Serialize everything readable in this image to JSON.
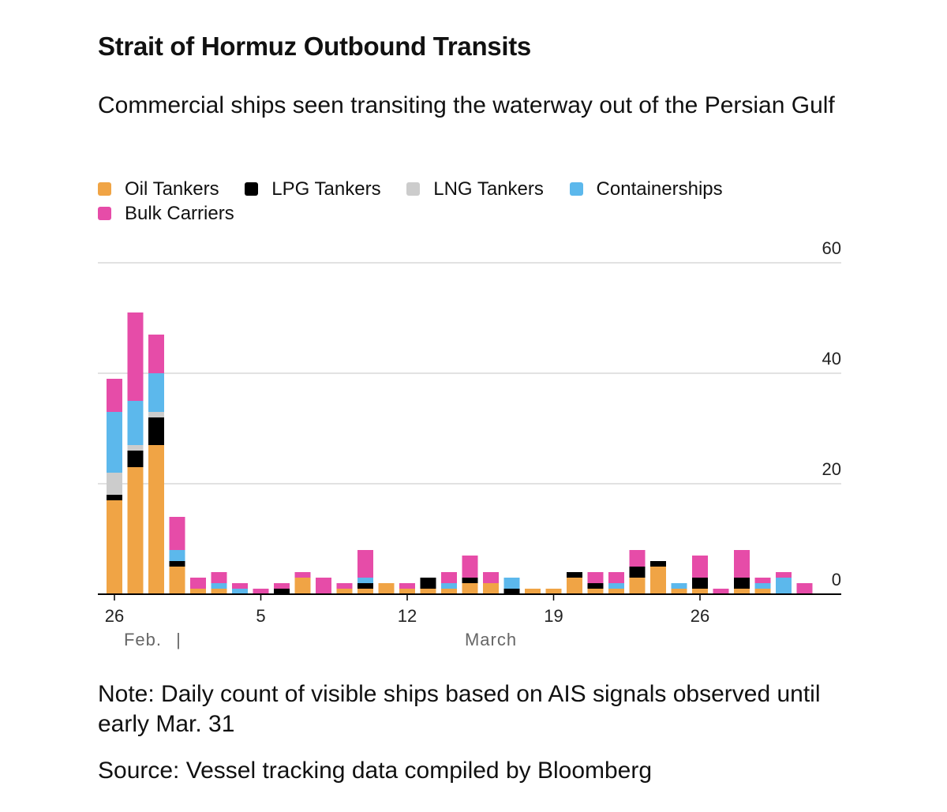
{
  "header": {
    "title": "Strait of Hormuz Outbound Transits",
    "subtitle": "Commercial ships seen transiting the waterway out of the Persian Gulf"
  },
  "footer": {
    "note": "Note: Daily count of visible ships based on AIS signals observed until early Mar. 31",
    "source": "Source: Vessel tracking data compiled by Bloomberg"
  },
  "chart_data": {
    "type": "bar",
    "stacked": true,
    "title": "Strait of Hormuz Outbound Transits",
    "subtitle": "Commercial ships seen transiting the waterway out of the Persian Gulf",
    "legend_position": "top-left",
    "grid": true,
    "ylim": [
      0,
      60
    ],
    "y_ticks": [
      "0",
      "20",
      "40",
      "60"
    ],
    "x_tick_labels": [
      "26",
      "5",
      "12",
      "19",
      "26"
    ],
    "month_labels": [
      "Feb.",
      "March"
    ],
    "month_divider": "|",
    "categories": [
      "Feb 26",
      "Feb 27",
      "Feb 28",
      "Mar 1",
      "Mar 2",
      "Mar 3",
      "Mar 4",
      "Mar 5",
      "Mar 6",
      "Mar 7",
      "Mar 8",
      "Mar 9",
      "Mar 10",
      "Mar 11",
      "Mar 12",
      "Mar 13",
      "Mar 14",
      "Mar 15",
      "Mar 16",
      "Mar 17",
      "Mar 18",
      "Mar 19",
      "Mar 20",
      "Mar 21",
      "Mar 22",
      "Mar 23",
      "Mar 24",
      "Mar 25",
      "Mar 26",
      "Mar 27",
      "Mar 28",
      "Mar 29",
      "Mar 30",
      "Mar 31"
    ],
    "series": [
      {
        "name": "Oil Tankers",
        "color": "#f0a445",
        "values": [
          17,
          23,
          27,
          5,
          1,
          1,
          0,
          0,
          0,
          3,
          0,
          1,
          1,
          2,
          1,
          1,
          1,
          2,
          2,
          0,
          1,
          1,
          3,
          1,
          1,
          3,
          5,
          1,
          1,
          0,
          1,
          1,
          0,
          0
        ]
      },
      {
        "name": "LPG Tankers",
        "color": "#000000",
        "values": [
          1,
          3,
          5,
          1,
          0,
          0,
          0,
          0,
          1,
          0,
          0,
          0,
          1,
          0,
          0,
          2,
          0,
          1,
          0,
          1,
          0,
          0,
          1,
          1,
          0,
          2,
          1,
          0,
          2,
          0,
          2,
          0,
          0,
          0
        ]
      },
      {
        "name": "LNG Tankers",
        "color": "#cccccc",
        "values": [
          4,
          1,
          1,
          0,
          0,
          0,
          0,
          0,
          0,
          0,
          0,
          0,
          0,
          0,
          0,
          0,
          0,
          0,
          0,
          0,
          0,
          0,
          0,
          0,
          0,
          0,
          0,
          0,
          0,
          0,
          0,
          0,
          0,
          0
        ]
      },
      {
        "name": "Containerships",
        "color": "#5cb8ec",
        "values": [
          11,
          8,
          7,
          2,
          0,
          1,
          1,
          0,
          0,
          0,
          0,
          0,
          1,
          0,
          0,
          0,
          1,
          0,
          0,
          2,
          0,
          0,
          0,
          0,
          1,
          0,
          0,
          1,
          0,
          0,
          0,
          1,
          3,
          0
        ]
      },
      {
        "name": "Bulk Carriers",
        "color": "#e64ca8",
        "values": [
          6,
          16,
          7,
          6,
          2,
          2,
          1,
          1,
          1,
          1,
          3,
          1,
          5,
          0,
          1,
          0,
          2,
          4,
          2,
          0,
          0,
          0,
          0,
          2,
          2,
          3,
          0,
          0,
          4,
          1,
          5,
          1,
          1,
          2
        ]
      }
    ]
  }
}
